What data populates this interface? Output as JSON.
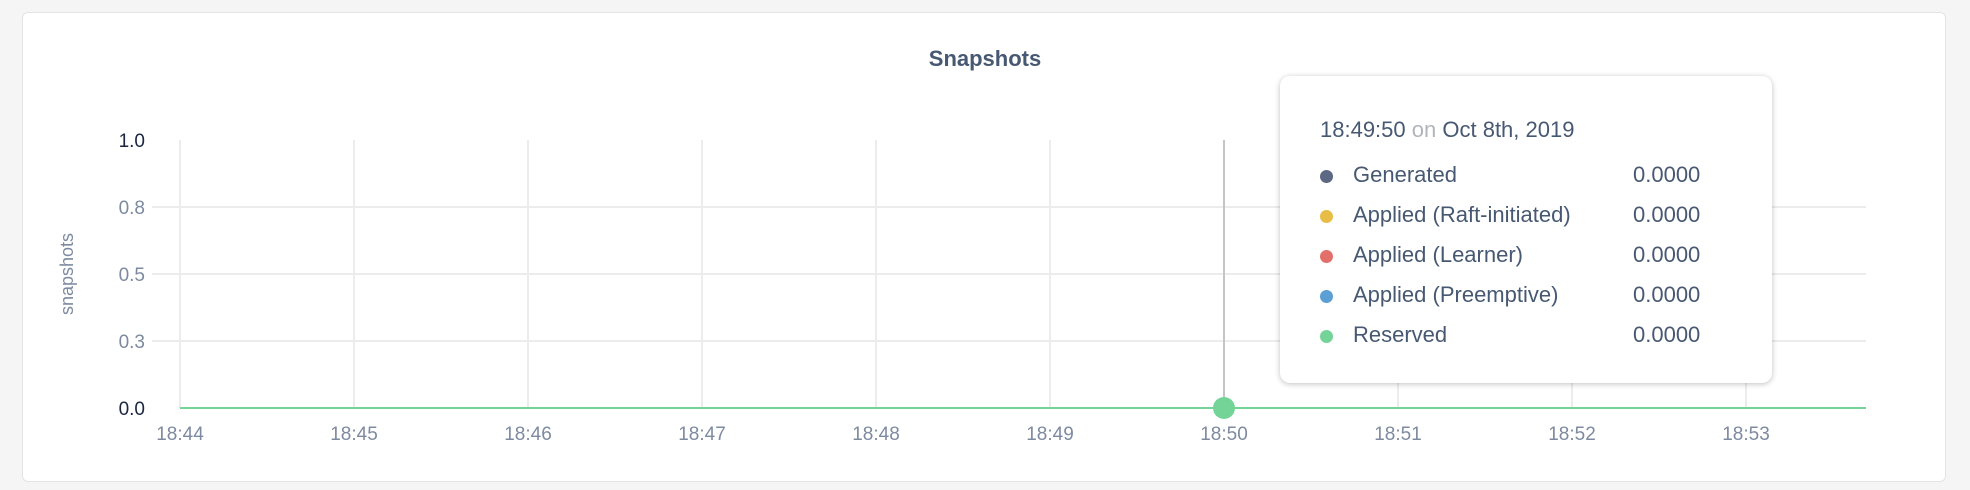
{
  "chart_data": {
    "type": "line",
    "title": "Snapshots",
    "ylabel": "snapshots",
    "xlabel": "",
    "ylim": [
      0,
      1
    ],
    "y_ticks": [
      0.0,
      0.25,
      0.5,
      0.75,
      1.0
    ],
    "y_tick_labels": [
      "0.0",
      "0.3",
      "0.5",
      "0.8",
      "1.0"
    ],
    "x_tick_labels": [
      "18:44",
      "18:45",
      "18:46",
      "18:47",
      "18:48",
      "18:49",
      "18:50",
      "18:51",
      "18:52",
      "18:53"
    ],
    "xlim_minutes_label": [
      "18:44",
      "18:53:40"
    ],
    "grid": true,
    "series": [
      {
        "name": "Generated",
        "color": "#5d6885",
        "values": [
          0,
          0,
          0,
          0,
          0,
          0,
          0,
          0,
          0,
          0
        ]
      },
      {
        "name": "Applied (Raft-initiated)",
        "color": "#e8bd46",
        "values": [
          0,
          0,
          0,
          0,
          0,
          0,
          0,
          0,
          0,
          0
        ]
      },
      {
        "name": "Applied (Learner)",
        "color": "#e36f6a",
        "values": [
          0,
          0,
          0,
          0,
          0,
          0,
          0,
          0,
          0,
          0
        ]
      },
      {
        "name": "Applied (Preemptive)",
        "color": "#5b9fd4",
        "values": [
          0,
          0,
          0,
          0,
          0,
          0,
          0,
          0,
          0,
          0
        ]
      },
      {
        "name": "Reserved",
        "color": "#74d497",
        "values": [
          0,
          0,
          0,
          0,
          0,
          0,
          0,
          0,
          0,
          0
        ]
      }
    ],
    "hover_x": "18:50"
  },
  "tooltip": {
    "time": "18:49:50",
    "on": "on",
    "date": "Oct 8th, 2019",
    "rows": [
      {
        "label": "Generated",
        "value": "0.0000",
        "color": "#5d6885"
      },
      {
        "label": "Applied (Raft-initiated)",
        "value": "0.0000",
        "color": "#e8bd46"
      },
      {
        "label": "Applied (Learner)",
        "value": "0.0000",
        "color": "#e36f6a"
      },
      {
        "label": "Applied (Preemptive)",
        "value": "0.0000",
        "color": "#5b9fd4"
      },
      {
        "label": "Reserved",
        "value": "0.0000",
        "color": "#74d497"
      }
    ]
  }
}
